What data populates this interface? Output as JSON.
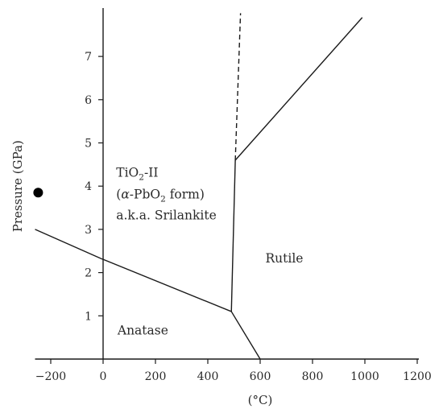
{
  "chart_data": {
    "type": "phase-diagram",
    "xlabel": "(°C)",
    "ylabel": "Pressure (GPa)",
    "xlim": [
      -260,
      1200
    ],
    "ylim": [
      0,
      8
    ],
    "x_ticks": [
      -200,
      0,
      200,
      400,
      600,
      800,
      1000,
      1200
    ],
    "y_ticks": [
      1,
      2,
      3,
      4,
      5,
      6,
      7
    ],
    "boundaries": [
      {
        "name": "anatase-tio2ii",
        "style": "solid",
        "points": [
          [
            -260,
            3.0
          ],
          [
            -10,
            2.33
          ],
          [
            490,
            1.1
          ]
        ]
      },
      {
        "name": "anatase-rutile",
        "style": "solid",
        "points": [
          [
            490,
            1.1
          ],
          [
            600,
            0.0
          ]
        ]
      },
      {
        "name": "tio2ii-rutile",
        "style": "solid",
        "points": [
          [
            490,
            1.1
          ],
          [
            505,
            4.6
          ]
        ]
      },
      {
        "name": "tio2ii-rutile-upper",
        "style": "solid",
        "points": [
          [
            505,
            4.6
          ],
          [
            990,
            7.9
          ]
        ]
      },
      {
        "name": "extrapolated",
        "style": "dashed",
        "points": [
          [
            505,
            4.6
          ],
          [
            525,
            8.0
          ]
        ]
      }
    ],
    "point_marker": {
      "x": -248,
      "y": 3.85
    },
    "regions": {
      "tio2ii": {
        "line1": {
          "a": "TiO",
          "sub": "2",
          "b": "-II"
        },
        "line2": {
          "open": "(",
          "alpha": "α",
          "c": "-PbO",
          "sub": "2",
          "d": " form)"
        },
        "line3": "a.k.a. Srilankite",
        "x": 50,
        "y": 4.22
      },
      "rutile": {
        "text": "Rutile",
        "x": 620,
        "y": 2.23
      },
      "anatase": {
        "text": "Anatase",
        "x": 55,
        "y": 0.57
      }
    }
  }
}
